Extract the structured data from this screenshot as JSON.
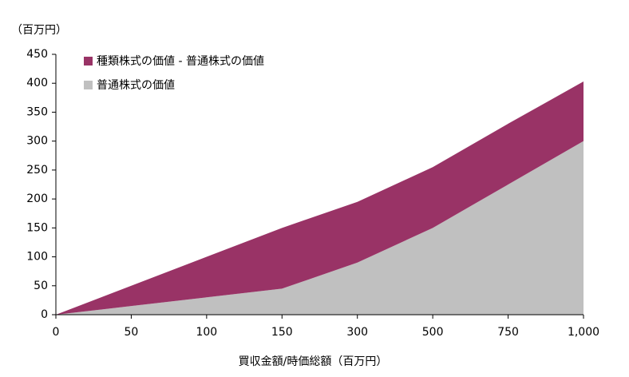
{
  "chart_data": {
    "type": "stacked-area",
    "y_axis_label": "（百万円）",
    "x_axis_label": "買収金額/時価総額（百万円）",
    "categories": [
      "0",
      "50",
      "100",
      "150",
      "300",
      "500",
      "750",
      "1,000"
    ],
    "series": [
      {
        "name": "普通株式の価値",
        "color": "#c0c0c0",
        "values": [
          0,
          15,
          30,
          45,
          90,
          150,
          225,
          300
        ]
      },
      {
        "name": "種類株式の価値 - 普通株式の価値",
        "color": "#993366",
        "values": [
          0,
          35,
          70,
          105,
          105,
          105,
          105,
          103
        ]
      }
    ],
    "ylim": [
      0,
      450
    ],
    "yticks": [
      0,
      50,
      100,
      150,
      200,
      250,
      300,
      350,
      400,
      450
    ],
    "grid": false,
    "legend": "top-left"
  }
}
